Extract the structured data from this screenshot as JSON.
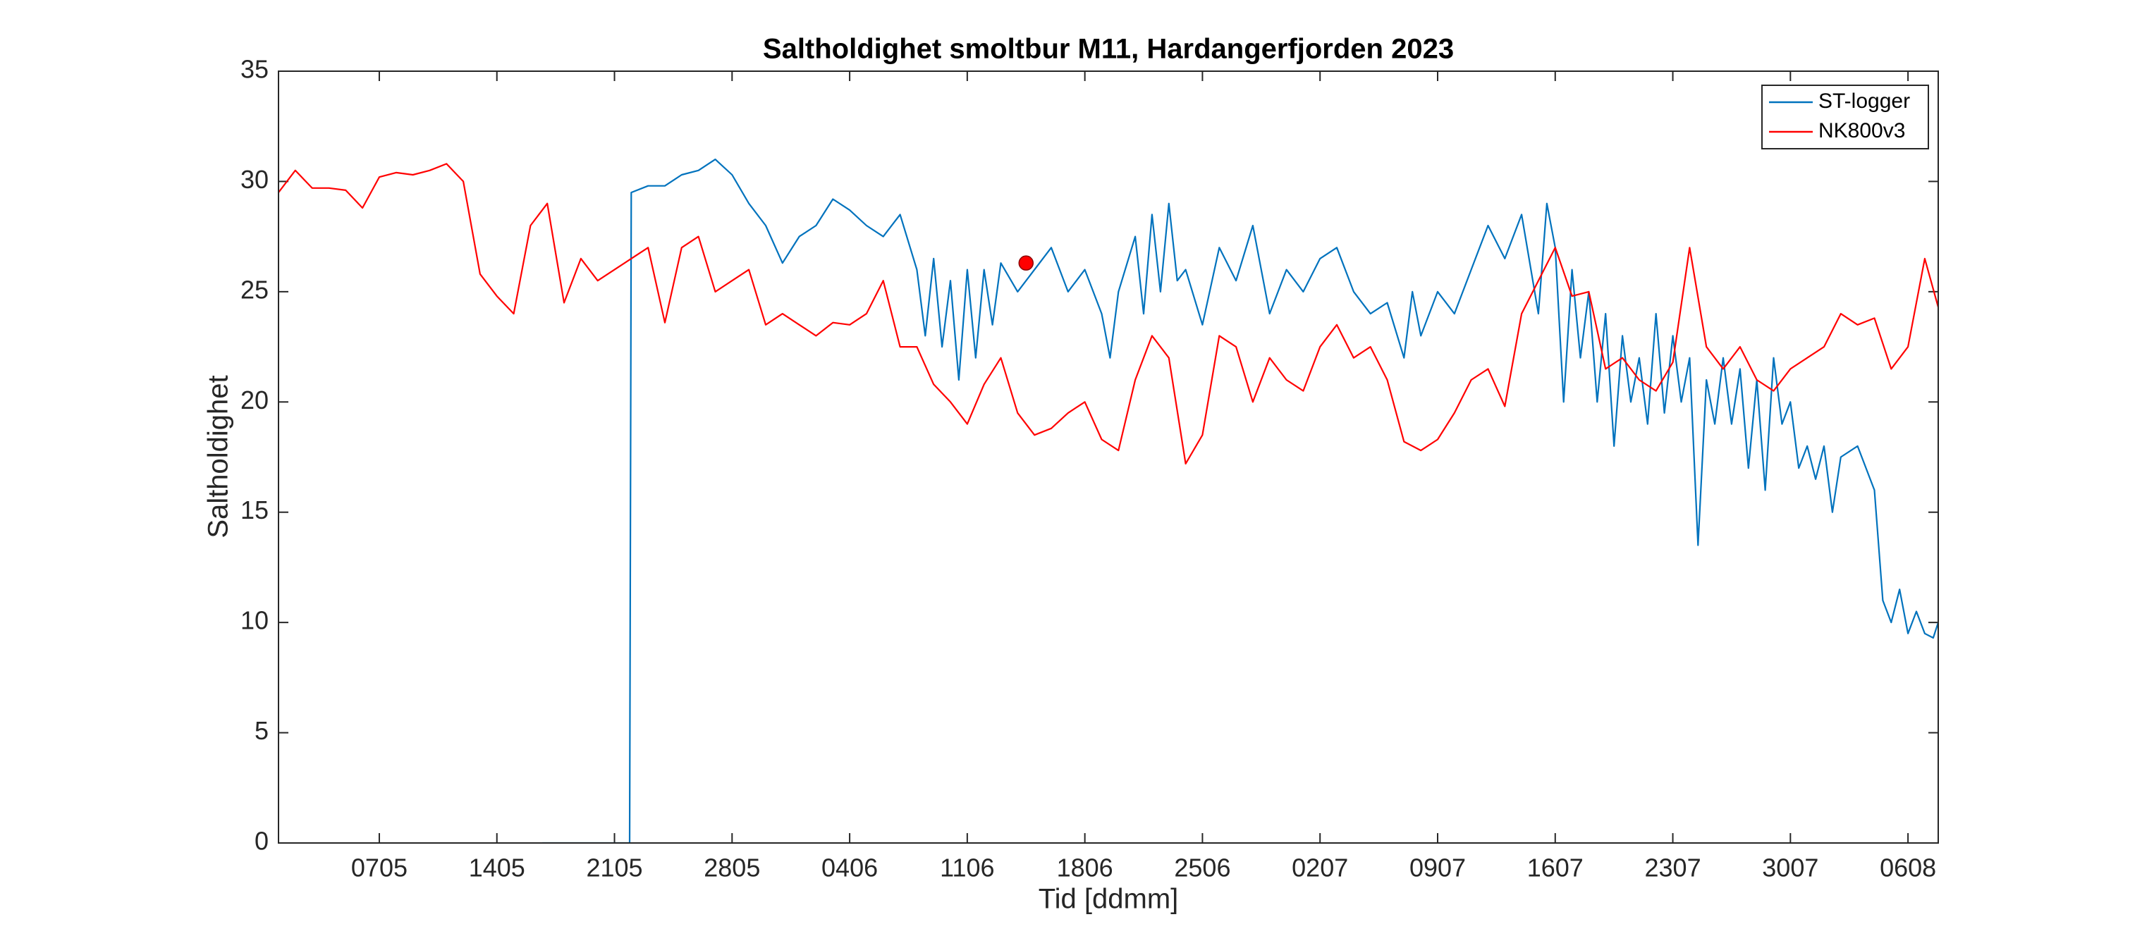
{
  "chart_data": {
    "type": "line",
    "title": "Saltholdighet smoltbur M11, Hardangerfjorden 2023",
    "xlabel": "Tid [ddmm]",
    "ylabel": "Saltholdighet",
    "xlim": [
      121,
      219.8
    ],
    "ylim": [
      0,
      35
    ],
    "xticks": [
      {
        "value": 127,
        "label": "0705"
      },
      {
        "value": 134,
        "label": "1405"
      },
      {
        "value": 141,
        "label": "2105"
      },
      {
        "value": 148,
        "label": "2805"
      },
      {
        "value": 155,
        "label": "0406"
      },
      {
        "value": 162,
        "label": "1106"
      },
      {
        "value": 169,
        "label": "1806"
      },
      {
        "value": 176,
        "label": "2506"
      },
      {
        "value": 183,
        "label": "0207"
      },
      {
        "value": 190,
        "label": "0907"
      },
      {
        "value": 197,
        "label": "1607"
      },
      {
        "value": 204,
        "label": "2307"
      },
      {
        "value": 211,
        "label": "3007"
      },
      {
        "value": 218,
        "label": "0608"
      }
    ],
    "yticks": [
      0,
      5,
      10,
      15,
      20,
      25,
      30,
      35
    ],
    "legend": "top-right",
    "series": [
      {
        "name": "ST-logger",
        "color": "#0072BD",
        "x": [
          136.7,
          141.9,
          142,
          143,
          144,
          145,
          146,
          147,
          148,
          149,
          150,
          151,
          152,
          153,
          154,
          155,
          156,
          157,
          158,
          159,
          159.5,
          160,
          160.5,
          161,
          161.5,
          162,
          162.5,
          163,
          163.5,
          164,
          165,
          166,
          167,
          168,
          169,
          170,
          170.5,
          171,
          172,
          172.5,
          173,
          173.5,
          174,
          174.5,
          175,
          176,
          177,
          178,
          179,
          180,
          181,
          182,
          183,
          184,
          185,
          186,
          187,
          188,
          188.5,
          189,
          190,
          191,
          192,
          193,
          194,
          195,
          196,
          196.5,
          197,
          197.5,
          198,
          198.5,
          199,
          199.5,
          200,
          200.5,
          201,
          201.5,
          202,
          202.5,
          203,
          203.5,
          204,
          204.5,
          205,
          205.5,
          206,
          206.5,
          207,
          207.5,
          208,
          208.5,
          209,
          209.5,
          210,
          210.5,
          211,
          211.5,
          212,
          212.5,
          213,
          213.5,
          214,
          215,
          216,
          216.5,
          217,
          217.5,
          218,
          218.5,
          219,
          219.5,
          219.8
        ],
        "values": [
          0,
          0,
          29.5,
          29.8,
          29.8,
          30.3,
          30.5,
          31,
          30.3,
          29,
          28,
          26.3,
          27.5,
          28,
          29.2,
          28.7,
          28,
          27.5,
          28.5,
          26,
          23,
          26.5,
          22.5,
          25.5,
          21,
          26,
          22,
          26,
          23.5,
          26.3,
          25,
          26,
          27,
          25,
          26,
          24,
          22,
          25,
          27.5,
          24,
          28.5,
          25,
          29,
          25.5,
          26,
          23.5,
          27,
          25.5,
          28,
          24,
          26,
          25,
          26.5,
          27,
          25,
          24,
          24.5,
          22,
          25,
          23,
          25,
          24,
          26,
          28,
          26.5,
          28.5,
          24,
          29,
          27,
          20,
          26,
          22,
          25,
          20,
          24,
          18,
          23,
          20,
          22,
          19,
          24,
          19.5,
          23,
          20,
          22,
          13.5,
          21,
          19,
          22,
          19,
          21.5,
          17,
          21,
          16,
          22,
          19,
          20,
          17,
          18,
          16.5,
          18,
          15,
          17.5,
          18,
          16,
          11,
          10,
          11.5,
          9.5,
          10.5,
          9.5,
          9.3,
          10
        ]
      },
      {
        "name": "NK800v3",
        "color": "#FF0000",
        "x": [
          121,
          122,
          123,
          124,
          125,
          126,
          127,
          128,
          129,
          130,
          131,
          132,
          133,
          134,
          135,
          136,
          137,
          138,
          139,
          140,
          141,
          142,
          143,
          144,
          145,
          146,
          147,
          148,
          149,
          150,
          151,
          152,
          153,
          154,
          155,
          156,
          157,
          158,
          159,
          160,
          161,
          162,
          163,
          164,
          165,
          166,
          167,
          168,
          169,
          170,
          171,
          172,
          173,
          174,
          175,
          176,
          177,
          178,
          179,
          180,
          181,
          182,
          183,
          184,
          185,
          186,
          187,
          188,
          189,
          190,
          191,
          192,
          193,
          194,
          195,
          196,
          197,
          198,
          199,
          200,
          201,
          202,
          203,
          204,
          205,
          206,
          207,
          208,
          209,
          210,
          211,
          212,
          213,
          214,
          215,
          216,
          217,
          218,
          219,
          219.8
        ],
        "values": [
          29.5,
          30.5,
          29.7,
          29.7,
          29.6,
          28.8,
          30.2,
          30.4,
          30.3,
          30.5,
          30.8,
          30,
          25.8,
          24.8,
          24,
          28,
          29,
          24.5,
          26.5,
          25.5,
          26,
          26.5,
          27,
          23.6,
          27,
          27.5,
          25,
          25.5,
          26,
          23.5,
          24,
          23.5,
          23,
          23.6,
          23.5,
          24,
          25.5,
          22.5,
          22.5,
          20.8,
          20,
          19,
          20.8,
          22,
          19.5,
          18.5,
          18.8,
          19.5,
          20,
          18.3,
          17.8,
          21,
          23,
          22,
          17.2,
          18.5,
          23,
          22.5,
          20,
          22,
          21,
          20.5,
          22.5,
          23.5,
          22,
          22.5,
          21,
          18.2,
          17.8,
          18.3,
          19.5,
          21,
          21.5,
          19.8,
          24,
          25.5,
          27,
          24.8,
          25,
          21.5,
          22,
          21,
          20.5,
          21.8,
          27,
          22.5,
          21.5,
          22.5,
          21,
          20.5,
          21.5,
          22,
          22.5,
          24,
          23.5,
          23.8,
          21.5,
          22.5,
          26.5,
          24.3
        ]
      }
    ],
    "marker": {
      "x": 165.5,
      "y": 26.3,
      "color": "#FF0000"
    }
  }
}
